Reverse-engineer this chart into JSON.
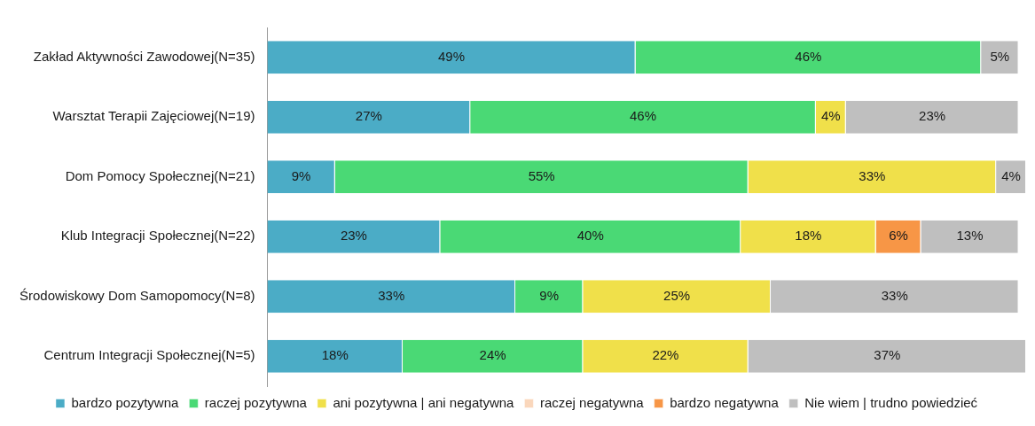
{
  "chart_data": {
    "type": "bar",
    "orientation": "horizontal",
    "stacked": true,
    "legend": "bottom",
    "categories": [
      "Zakład Aktywności Zawodowej(N=35)",
      "Warsztat Terapii Zajęciowej(N=19)",
      "Dom Pomocy Społecznej(N=21)",
      "Klub Integracji Społecznej(N=22)",
      "Środowiskowy Dom Samopomocy(N=8)",
      "Centrum Integracji Społecznej(N=5)"
    ],
    "series": [
      {
        "name": "bardzo pozytywna",
        "color": "#4bacc6",
        "values": [
          49,
          27,
          9,
          23,
          33,
          18
        ],
        "value_labels": [
          "49%",
          "27%",
          "9%",
          "23%",
          "33%",
          "18%"
        ]
      },
      {
        "name": "raczej pozytywna",
        "color": "#4ad975",
        "values": [
          46,
          46,
          55,
          40,
          9,
          24
        ],
        "value_labels": [
          "46%",
          "46%",
          "55%",
          "40%",
          "9%",
          "24%"
        ]
      },
      {
        "name": "ani pozytywna | ani negatywna",
        "color": "#f0e04a",
        "values": [
          null,
          4,
          33,
          18,
          25,
          22
        ],
        "value_labels": [
          null,
          "4%",
          "33%",
          "18%",
          "25%",
          "22%"
        ]
      },
      {
        "name": "raczej negatywna",
        "color": "#fad7bc",
        "values": [
          null,
          null,
          null,
          null,
          null,
          null
        ]
      },
      {
        "name": "bardzo negatywna",
        "color": "#f79646",
        "values": [
          null,
          null,
          null,
          6,
          null,
          null
        ],
        "value_labels": [
          null,
          null,
          null,
          "6%",
          null,
          null
        ]
      },
      {
        "name": "Nie wiem | trudno powiedzieć",
        "color": "#bfbfbf",
        "values": [
          5,
          23,
          4,
          13,
          33,
          37
        ],
        "value_labels": [
          "5%",
          "23%",
          "4%",
          "13%",
          "33%",
          "37%"
        ]
      }
    ]
  }
}
